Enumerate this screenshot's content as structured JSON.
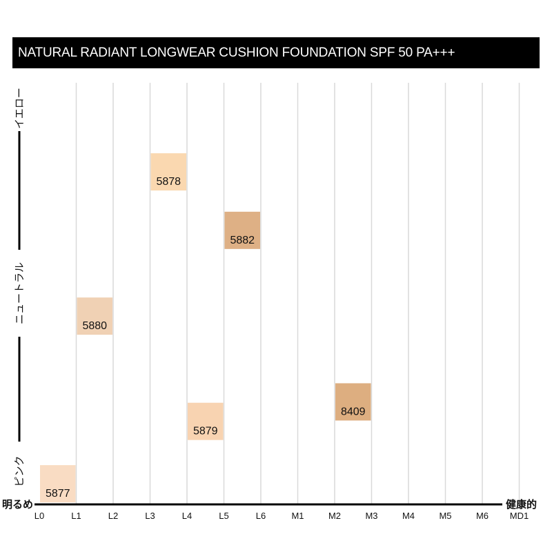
{
  "chart_data": {
    "type": "scatter",
    "title": "NATURAL RADIANT LONGWEAR CUSHION FOUNDATION SPF 50 PA+++",
    "x_categories": [
      "L0",
      "L1",
      "L2",
      "L3",
      "L4",
      "L5",
      "L6",
      "M1",
      "M2",
      "M3",
      "M4",
      "M5",
      "M6",
      "MD1"
    ],
    "x_axis_left_label": "明るめ",
    "x_axis_right_label": "健康的",
    "y_axis_labels": {
      "top": "イエロー",
      "middle": "ニュートラル",
      "bottom": "ピンク"
    },
    "y_scale": "pink (0) to yellow (100)",
    "y_range": [
      0,
      100
    ],
    "grid": true,
    "points": [
      {
        "label": "5877",
        "x_from": "L0",
        "x_to": "L1",
        "y": 6,
        "color": "#f9dcc3"
      },
      {
        "label": "5880",
        "x_from": "L1",
        "x_to": "L2",
        "y": 49,
        "color": "#f0d1b4"
      },
      {
        "label": "5878",
        "x_from": "L3",
        "x_to": "L4",
        "y": 86,
        "color": "#fad8b0"
      },
      {
        "label": "5879",
        "x_from": "L4",
        "x_to": "L5",
        "y": 22,
        "color": "#f8d3b1"
      },
      {
        "label": "5882",
        "x_from": "L5",
        "x_to": "L6",
        "y": 71,
        "color": "#deb085"
      },
      {
        "label": "8409",
        "x_from": "M2",
        "x_to": "M3",
        "y": 27,
        "color": "#ddae80"
      }
    ]
  }
}
